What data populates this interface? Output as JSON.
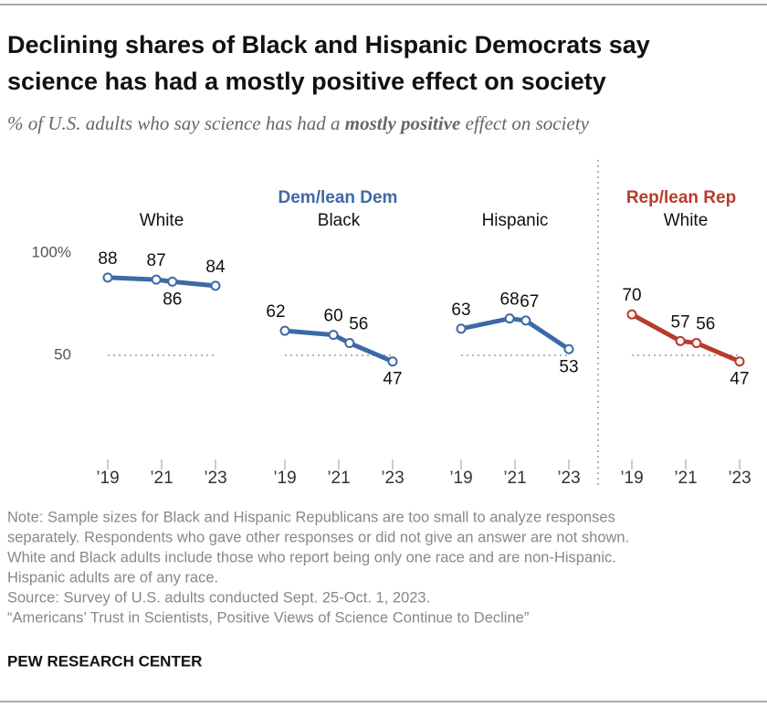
{
  "title": [
    "Declining shares of Black and Hispanic Democrats say",
    "science has had a mostly positive effect on society"
  ],
  "subtitle": {
    "before": "% of U.S. adults who say science has had a ",
    "emphasis": "mostly positive",
    "after": " effect on society"
  },
  "group_labels": [
    {
      "label": "Dem/lean Dem",
      "color": "#3c6aa6"
    },
    {
      "label": "Rep/lean Rep",
      "color": "#b83b2c"
    }
  ],
  "chart_data": [
    {
      "type": "line",
      "title": "White",
      "x": [
        2019,
        2020.8,
        2021.4,
        2023
      ],
      "series": [
        {
          "name": "Dem/lean Dem",
          "color": "#3c6aa6",
          "values": [
            88,
            87,
            86,
            84
          ]
        }
      ],
      "xlim": [
        2019,
        2023
      ],
      "xticks": [
        {
          "value": 2019,
          "label": "’19"
        },
        {
          "value": 2021,
          "label": "’21"
        },
        {
          "value": 2023,
          "label": "’23"
        }
      ],
      "ylim": [
        0,
        100
      ],
      "yticks": [
        {
          "value": 50,
          "label": "50"
        },
        {
          "value": 100,
          "label": "100%"
        }
      ]
    },
    {
      "type": "line",
      "title": "Black",
      "x": [
        2019,
        2020.8,
        2021.4,
        2023
      ],
      "series": [
        {
          "name": "Dem/lean Dem",
          "color": "#3c6aa6",
          "values": [
            62,
            60,
            56,
            47
          ]
        }
      ],
      "xlim": [
        2019,
        2023
      ],
      "xticks": [
        {
          "value": 2019,
          "label": "’19"
        },
        {
          "value": 2021,
          "label": "’21"
        },
        {
          "value": 2023,
          "label": "’23"
        }
      ],
      "ylim": [
        0,
        100
      ],
      "yticks": [
        50
      ]
    },
    {
      "type": "line",
      "title": "Hispanic",
      "x": [
        2019,
        2020.8,
        2021.4,
        2023
      ],
      "series": [
        {
          "name": "Dem/lean Dem",
          "color": "#3c6aa6",
          "values": [
            63,
            68,
            67,
            53
          ]
        }
      ],
      "xlim": [
        2019,
        2023
      ],
      "xticks": [
        {
          "value": 2019,
          "label": "’19"
        },
        {
          "value": 2021,
          "label": "’21"
        },
        {
          "value": 2023,
          "label": "’23"
        }
      ],
      "ylim": [
        0,
        100
      ],
      "yticks": [
        50
      ]
    },
    {
      "type": "line",
      "title": "White",
      "x": [
        2019,
        2020.8,
        2021.4,
        2023
      ],
      "series": [
        {
          "name": "Rep/lean Rep",
          "color": "#b83b2c",
          "values": [
            70,
            57,
            56,
            47
          ]
        }
      ],
      "xlim": [
        2019,
        2023
      ],
      "xticks": [
        {
          "value": 2019,
          "label": "’19"
        },
        {
          "value": 2021,
          "label": "’21"
        },
        {
          "value": 2023,
          "label": "’23"
        }
      ],
      "ylim": [
        0,
        100
      ],
      "yticks": [
        50
      ]
    }
  ],
  "notes": [
    "Note: Sample sizes for Black and Hispanic Republicans are too small to analyze responses",
    "separately. Respondents who gave other responses or did not give an answer are not shown.",
    "White and Black adults include those who report being only one race and are non-Hispanic.",
    "Hispanic adults are of any race.",
    "Source: Survey of U.S. adults conducted Sept. 25-Oct. 1, 2023.",
    "“Americans’ Trust in Scientists, Positive Views of Science Continue to Decline”"
  ],
  "brand": "PEW RESEARCH CENTER"
}
